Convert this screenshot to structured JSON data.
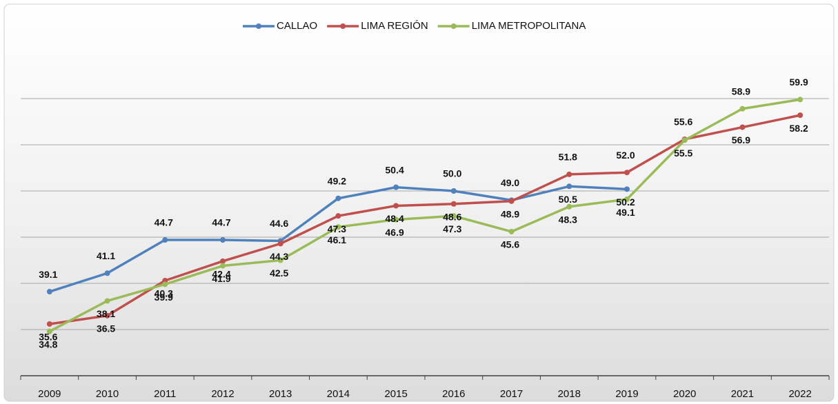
{
  "chart_data": {
    "type": "line",
    "categories": [
      "2009",
      "2010",
      "2011",
      "2012",
      "2013",
      "2014",
      "2015",
      "2016",
      "2017",
      "2018",
      "2019",
      "2020",
      "2021",
      "2022"
    ],
    "series": [
      {
        "name": "CALLAO",
        "color": "#4f81bd",
        "values": [
          39.1,
          41.1,
          44.7,
          44.7,
          44.6,
          49.2,
          50.4,
          50.0,
          49.0,
          50.5,
          50.2,
          null,
          null,
          null
        ]
      },
      {
        "name": "LIMA REGIÓN",
        "color": "#c0504d",
        "values": [
          35.6,
          36.5,
          40.3,
          42.4,
          44.3,
          47.3,
          48.4,
          48.6,
          48.9,
          51.8,
          52.0,
          55.6,
          56.9,
          58.2
        ]
      },
      {
        "name": "LIMA METROPOLITANA",
        "color": "#9bbb59",
        "values": [
          34.8,
          38.1,
          39.9,
          41.9,
          42.5,
          46.1,
          46.9,
          47.3,
          45.6,
          48.3,
          49.1,
          55.5,
          58.9,
          59.9
        ]
      }
    ],
    "ylim": [
      30,
      65
    ],
    "yticks": [
      30,
      35,
      40,
      45,
      50,
      55,
      60
    ],
    "grid": true,
    "legend": "top"
  }
}
